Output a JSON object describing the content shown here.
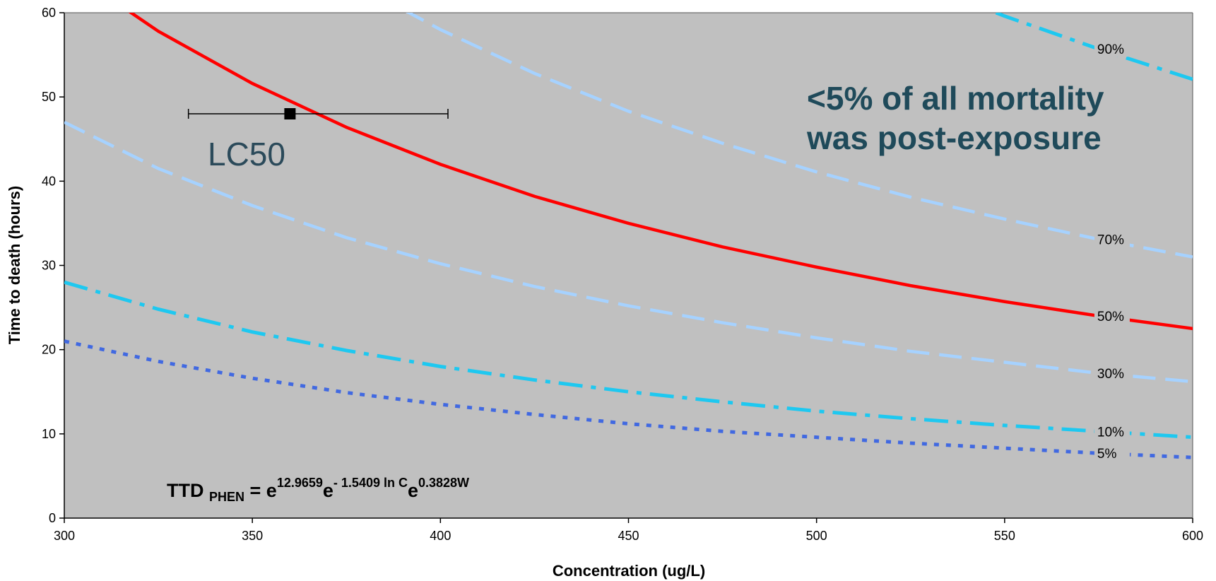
{
  "chart_data": {
    "type": "line",
    "x_label": "Concentration (ug/L)",
    "y_label": "Time to death (hours)",
    "x": [
      300,
      325,
      350,
      375,
      400,
      425,
      450,
      475,
      500,
      525,
      550,
      575,
      600
    ],
    "xlim": [
      300,
      600
    ],
    "xticks": [
      300,
      350,
      400,
      450,
      500,
      550,
      600
    ],
    "ylim": [
      0,
      60
    ],
    "yticks": [
      0,
      10,
      20,
      30,
      40,
      50,
      60
    ],
    "grid": false,
    "background": "#c0c0c0",
    "series": [
      {
        "name": "5%",
        "color": "#4169e1",
        "style": "dotted",
        "values": [
          21,
          18.6,
          16.6,
          14.9,
          13.5,
          12.3,
          11.2,
          10.3,
          9.6,
          8.9,
          8.3,
          7.7,
          7.2
        ]
      },
      {
        "name": "10%",
        "color": "#1ec8f0",
        "style": "dashdot",
        "values": [
          28,
          24.8,
          22.1,
          19.9,
          18.0,
          16.4,
          15.0,
          13.8,
          12.7,
          11.8,
          11.0,
          10.3,
          9.6
        ]
      },
      {
        "name": "30%",
        "color": "#a6d2ff",
        "style": "dashed",
        "values": [
          47,
          41.5,
          37.1,
          33.3,
          30.2,
          27.5,
          25.2,
          23.2,
          21.4,
          19.8,
          18.5,
          17.2,
          16.2
        ]
      },
      {
        "name": "50%",
        "color": "#ff0000",
        "style": "solid",
        "values": [
          65.4,
          57.8,
          51.6,
          46.4,
          42.0,
          38.2,
          35.0,
          32.2,
          29.8,
          27.6,
          25.7,
          24.0,
          22.5
        ]
      },
      {
        "name": "70%",
        "color": "#a6d2ff",
        "style": "dashed",
        "values": [
          null,
          null,
          null,
          64.0,
          58.0,
          52.8,
          48.3,
          44.5,
          41.1,
          38.1,
          35.5,
          33.1,
          31.0
        ]
      },
      {
        "name": "90%",
        "color": "#1ec8f0",
        "style": "dashdot",
        "values": [
          null,
          null,
          null,
          null,
          null,
          null,
          null,
          null,
          null,
          64.0,
          59.6,
          55.7,
          52.1
        ]
      }
    ],
    "lc50": {
      "label": "LC50",
      "x": 360,
      "y": 48,
      "x_low": 333,
      "x_high": 402
    },
    "annotation": [
      "<5% of all mortality",
      "was post-exposure"
    ],
    "formula": [
      "TTD ",
      "PHEN",
      " = e",
      "12.9659",
      "e",
      "- 1.5409 ln C",
      "e",
      "0.3828W"
    ]
  }
}
